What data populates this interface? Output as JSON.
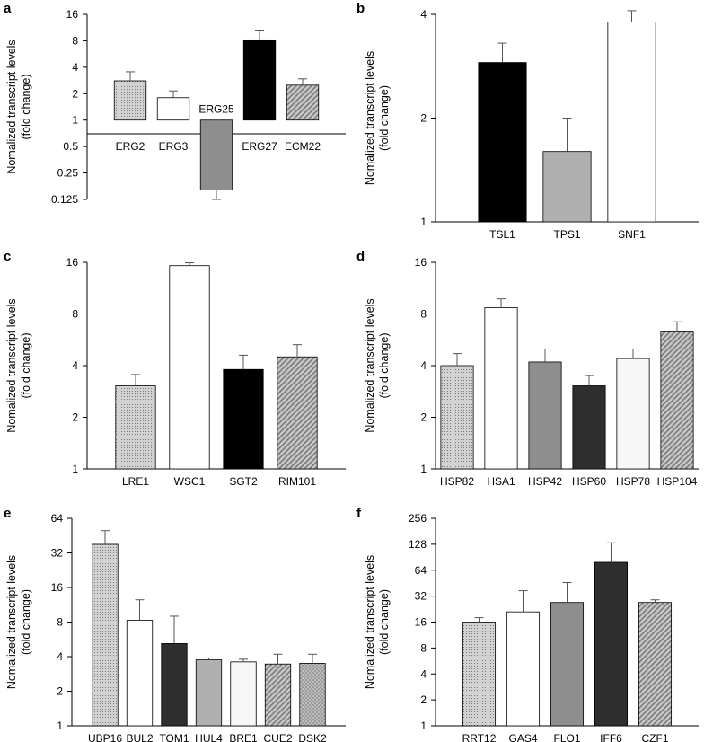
{
  "figure": {
    "ylabel_line1": "Nomalized transcript levels",
    "ylabel_line2": "(fold change)"
  },
  "chart_data": [
    {
      "panel": "a",
      "type": "bar",
      "scale": "log2",
      "ylim": [
        0.125,
        16
      ],
      "yticks": [
        "0.125",
        "0.25",
        "0.5",
        "1",
        "2",
        "4",
        "8",
        "16"
      ],
      "ytick_values": [
        0.125,
        0.25,
        0.5,
        1,
        2,
        4,
        8,
        16
      ],
      "baseline": 1,
      "ylabel": "Nomalized transcript levels (fold change)",
      "categories": [
        "ERG2",
        "ERG3",
        "ERG25",
        "ERG27",
        "ECM22"
      ],
      "values": [
        2.8,
        1.8,
        0.16,
        8.2,
        2.5
      ],
      "errors": [
        3.55,
        2.15,
        0.125,
        10.6,
        2.95
      ],
      "fills": [
        "dots",
        "white",
        "gray",
        "black",
        "diag"
      ]
    },
    {
      "panel": "b",
      "type": "bar",
      "scale": "log2",
      "ylim": [
        1,
        4
      ],
      "yticks": [
        "1",
        "2",
        "4"
      ],
      "ytick_values": [
        1,
        2,
        4
      ],
      "baseline": 1,
      "ylabel": "Nomalized transcript levels (fold change)",
      "categories": [
        "TSL1",
        "TPS1",
        "SNF1"
      ],
      "values": [
        2.9,
        1.6,
        3.8
      ],
      "errors": [
        3.3,
        2.0,
        4.1
      ],
      "fills": [
        "black",
        "lightgray",
        "white"
      ]
    },
    {
      "panel": "c",
      "type": "bar",
      "scale": "log2",
      "ylim": [
        1,
        16
      ],
      "yticks": [
        "1",
        "2",
        "4",
        "8",
        "16"
      ],
      "ytick_values": [
        1,
        2,
        4,
        8,
        16
      ],
      "baseline": 1,
      "ylabel": "Nomalized transcript levels (fold change)",
      "categories": [
        "LRE1",
        "WSC1",
        "SGT2",
        "RIM101"
      ],
      "values": [
        3.05,
        15.3,
        3.8,
        4.5
      ],
      "errors": [
        3.55,
        15.9,
        4.6,
        5.3
      ],
      "fills": [
        "dots",
        "white",
        "black",
        "diag"
      ]
    },
    {
      "panel": "d",
      "type": "bar",
      "scale": "log2",
      "ylim": [
        1,
        16
      ],
      "yticks": [
        "1",
        "2",
        "4",
        "8",
        "16"
      ],
      "ytick_values": [
        1,
        2,
        4,
        8,
        16
      ],
      "baseline": 1,
      "ylabel": "Nomalized transcript levels (fold change)",
      "categories": [
        "HSP82",
        "HSA1",
        "HSP42",
        "HSP60",
        "HSP78",
        "HSP104"
      ],
      "values": [
        4.0,
        8.7,
        4.2,
        3.05,
        4.4,
        6.3
      ],
      "errors": [
        4.7,
        9.8,
        5.0,
        3.5,
        5.0,
        7.2
      ],
      "fills": [
        "dots",
        "white",
        "gray",
        "darkgray",
        "lightwhite",
        "diag"
      ]
    },
    {
      "panel": "e",
      "type": "bar",
      "scale": "log2",
      "ylim": [
        1,
        64
      ],
      "yticks": [
        "1",
        "2",
        "4",
        "8",
        "16",
        "32",
        "64"
      ],
      "ytick_values": [
        1,
        2,
        4,
        8,
        16,
        32,
        64
      ],
      "baseline": 1,
      "ylabel": "Nomalized transcript levels (fold change)",
      "categories": [
        "UBP16",
        "BUL2",
        "TOM1",
        "HUL4",
        "BRE1",
        "CUE2",
        "DSK2"
      ],
      "values": [
        38,
        8.3,
        5.2,
        3.75,
        3.6,
        3.45,
        3.5
      ],
      "errors": [
        50,
        12.5,
        9.0,
        3.9,
        3.8,
        4.2,
        4.2
      ],
      "fills": [
        "dots",
        "white",
        "darkgray",
        "lightgray",
        "lightwhite",
        "diag",
        "smallcheck"
      ]
    },
    {
      "panel": "f",
      "type": "bar",
      "scale": "log2",
      "ylim": [
        1,
        256
      ],
      "yticks": [
        "1",
        "2",
        "4",
        "8",
        "16",
        "32",
        "64",
        "128",
        "256"
      ],
      "ytick_values": [
        1,
        2,
        4,
        8,
        16,
        32,
        64,
        128,
        256
      ],
      "baseline": 1,
      "ylabel": "Nomalized transcript levels (fold change)",
      "categories": [
        "RRT12",
        "GAS4",
        "FLO1",
        "IFF6",
        "CZF1"
      ],
      "values": [
        16,
        21,
        27,
        79,
        27
      ],
      "errors": [
        18,
        37,
        46,
        133,
        29
      ],
      "fills": [
        "dots",
        "white",
        "gray",
        "darkgray",
        "diag"
      ]
    }
  ]
}
